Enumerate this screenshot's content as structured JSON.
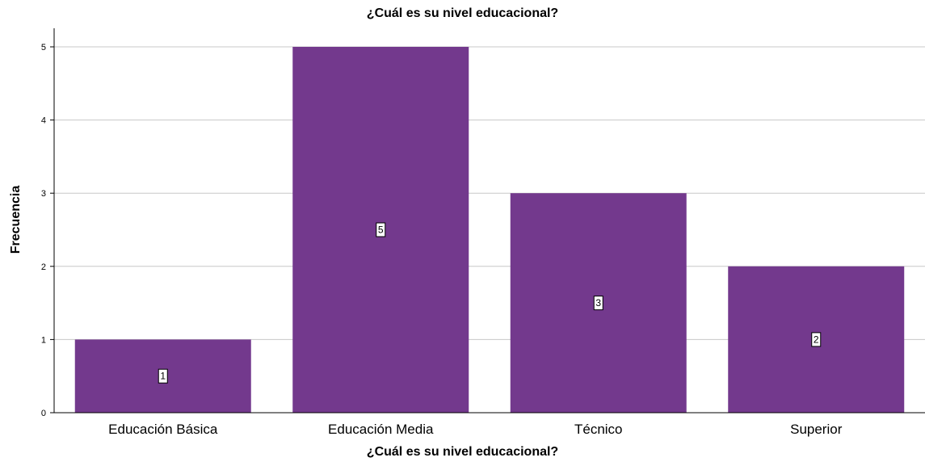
{
  "chart_data": {
    "type": "bar",
    "title": "¿Cuál es su nivel educacional?",
    "xlabel": "¿Cuál es su nivel educacional?",
    "ylabel": "Frecuencia",
    "categories": [
      "Educación Básica",
      "Educación Media",
      "Técnico",
      "Superior"
    ],
    "values": [
      1,
      5,
      3,
      2
    ],
    "ylim": [
      0,
      5.25
    ],
    "yticks": [
      0,
      1,
      2,
      3,
      4,
      5
    ],
    "grid": true,
    "bar_color": "#73398d",
    "data_labels": true
  }
}
